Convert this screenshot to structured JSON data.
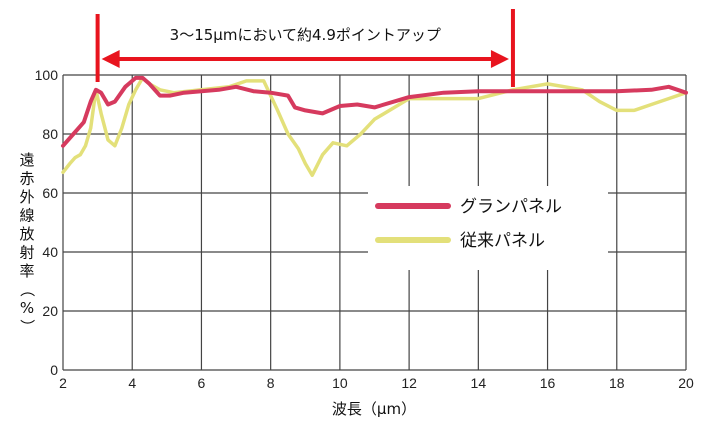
{
  "chart_data": {
    "type": "line",
    "title": "",
    "xlabel": "波長（μm）",
    "ylabel": "遠赤外線放射率（%）",
    "xlim": [
      2,
      20
    ],
    "ylim": [
      0,
      100
    ],
    "x_ticks": [
      2,
      4,
      6,
      8,
      10,
      12,
      14,
      16,
      18,
      20
    ],
    "y_ticks": [
      0,
      20,
      40,
      60,
      80,
      100
    ],
    "x_tick_labels": [
      "2",
      "4",
      "6",
      "8",
      "10",
      "12",
      "14",
      "16",
      "18",
      "20"
    ],
    "y_tick_labels": [
      "0",
      "20",
      "40",
      "60",
      "80",
      "100"
    ],
    "grid": true,
    "legend_position": "center-right",
    "annotation": {
      "text": "3〜15μmにおいて約4.9ポイントアップ",
      "range": [
        3,
        15
      ]
    },
    "series": [
      {
        "name": "グランパネル",
        "color": "#d63a5e",
        "x": [
          2,
          2.3,
          2.6,
          2.8,
          2.95,
          3.1,
          3.3,
          3.5,
          3.8,
          4.1,
          4.3,
          4.5,
          4.8,
          5.1,
          5.5,
          6.0,
          6.5,
          7.0,
          7.5,
          8.0,
          8.5,
          8.7,
          9.0,
          9.5,
          10.0,
          10.5,
          11.0,
          12.0,
          13.0,
          14.0,
          15.0,
          16.0,
          17.0,
          18.0,
          19.0,
          19.5,
          20.0
        ],
        "y": [
          76,
          80,
          84,
          91,
          95,
          94,
          90,
          91,
          96,
          99,
          99,
          97,
          93,
          93,
          94,
          94.5,
          95,
          96,
          94.5,
          94,
          93,
          89,
          88,
          87,
          89.5,
          90,
          89,
          92.5,
          94,
          94.5,
          94.5,
          94.5,
          94.5,
          94.5,
          95,
          96,
          94
        ]
      },
      {
        "name": "従来パネル",
        "color": "#e3e07a",
        "x": [
          2,
          2.2,
          2.35,
          2.5,
          2.65,
          2.8,
          2.95,
          3.1,
          3.3,
          3.5,
          3.7,
          3.9,
          4.1,
          4.3,
          4.5,
          4.8,
          5.2,
          6.0,
          6.8,
          7.3,
          7.8,
          8.2,
          8.5,
          8.8,
          9.0,
          9.2,
          9.5,
          9.8,
          10.2,
          10.6,
          11.0,
          12.0,
          13.0,
          14.0,
          15.0,
          16.0,
          17.0,
          17.5,
          18.0,
          18.5,
          19.0,
          19.5,
          20.0
        ],
        "y": [
          67,
          70,
          72,
          73,
          76,
          82,
          95,
          87,
          78,
          76,
          82,
          90,
          95,
          99,
          97,
          95,
          94,
          95,
          96,
          98,
          98,
          88,
          80,
          75,
          70,
          66,
          73,
          77,
          76,
          80,
          85,
          92,
          92,
          92,
          95,
          97,
          95,
          91,
          88,
          88,
          90,
          92,
          94
        ]
      }
    ]
  }
}
